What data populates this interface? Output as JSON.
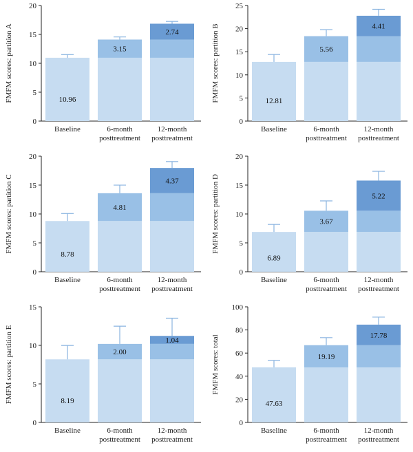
{
  "colors": {
    "seg1": "#c6dcf1",
    "seg2": "#99c0e6",
    "seg3": "#6a9bd3",
    "err": "#8ab4e0",
    "axis": "#222222"
  },
  "chart_data": [
    {
      "type": "bar",
      "stacked": true,
      "ylabel": "FMFM scores: partition A",
      "ylim": [
        0,
        20
      ],
      "yticks": [
        0,
        5,
        10,
        15,
        20
      ],
      "categories": [
        "Baseline",
        "6-month|posttreatment",
        "12-month|posttreatment"
      ],
      "segments": [
        [
          10.96
        ],
        [
          10.96,
          3.15
        ],
        [
          10.96,
          3.15,
          2.74
        ]
      ],
      "labels": [
        "10.96",
        "3.15",
        "2.74"
      ],
      "totals": [
        10.96,
        14.11,
        16.85
      ],
      "errors": [
        0.55,
        0.45,
        0.4
      ]
    },
    {
      "type": "bar",
      "stacked": true,
      "ylabel": "FMFM scores: partition B",
      "ylim": [
        0,
        25
      ],
      "yticks": [
        0,
        5,
        10,
        15,
        20,
        25
      ],
      "categories": [
        "Baseline",
        "6-month|posttreatment",
        "12-month|posttreatment"
      ],
      "segments": [
        [
          12.81
        ],
        [
          12.81,
          5.56
        ],
        [
          12.81,
          5.56,
          4.41
        ]
      ],
      "labels": [
        "12.81",
        "5.56",
        "4.41"
      ],
      "totals": [
        12.81,
        18.37,
        22.78
      ],
      "errors": [
        1.6,
        1.4,
        1.4
      ]
    },
    {
      "type": "bar",
      "stacked": true,
      "ylabel": "FMFM scores: partition C",
      "ylim": [
        0,
        20
      ],
      "yticks": [
        0,
        5,
        10,
        15,
        20
      ],
      "categories": [
        "Baseline",
        "6-month|posttreatment",
        "12-month|posttreatment"
      ],
      "segments": [
        [
          8.78
        ],
        [
          8.78,
          4.81
        ],
        [
          8.78,
          4.81,
          4.37
        ]
      ],
      "labels": [
        "8.78",
        "4.81",
        "4.37"
      ],
      "totals": [
        8.78,
        13.59,
        17.96
      ],
      "errors": [
        1.3,
        1.4,
        1.1
      ]
    },
    {
      "type": "bar",
      "stacked": true,
      "ylabel": "FMFM scores: partition D",
      "ylim": [
        0,
        20
      ],
      "yticks": [
        0,
        5,
        10,
        15,
        20
      ],
      "categories": [
        "Baseline",
        "6-month|posttreatment",
        "12-month|posttreatment"
      ],
      "segments": [
        [
          6.89
        ],
        [
          6.89,
          3.67
        ],
        [
          6.89,
          3.67,
          5.22
        ]
      ],
      "labels": [
        "6.89",
        "3.67",
        "5.22"
      ],
      "totals": [
        6.89,
        10.56,
        15.78
      ],
      "errors": [
        1.3,
        1.7,
        1.6
      ]
    },
    {
      "type": "bar",
      "stacked": true,
      "ylabel": "FMFM scores: partition E",
      "ylim": [
        0,
        15
      ],
      "yticks": [
        0,
        5,
        10,
        15
      ],
      "categories": [
        "Baseline",
        "6-month|posttreatment",
        "12-month|posttreatment"
      ],
      "segments": [
        [
          8.19
        ],
        [
          8.19,
          2.0
        ],
        [
          8.19,
          2.0,
          1.04
        ]
      ],
      "labels": [
        "8.19",
        "2.00",
        "1.04"
      ],
      "totals": [
        8.19,
        10.19,
        11.23
      ],
      "errors": [
        1.8,
        2.3,
        2.3
      ]
    },
    {
      "type": "bar",
      "stacked": true,
      "ylabel": "FMFM scores: total",
      "ylim": [
        0,
        100
      ],
      "yticks": [
        0,
        20,
        40,
        60,
        80,
        100
      ],
      "categories": [
        "Baseline",
        "6-month|posttreatment",
        "12-month|posttreatment"
      ],
      "segments": [
        [
          47.63
        ],
        [
          47.63,
          19.19
        ],
        [
          47.63,
          19.19,
          17.78
        ]
      ],
      "labels": [
        "47.63",
        "19.19",
        "17.78"
      ],
      "totals": [
        47.63,
        66.82,
        84.6
      ],
      "errors": [
        6.0,
        6.5,
        6.5
      ]
    }
  ]
}
